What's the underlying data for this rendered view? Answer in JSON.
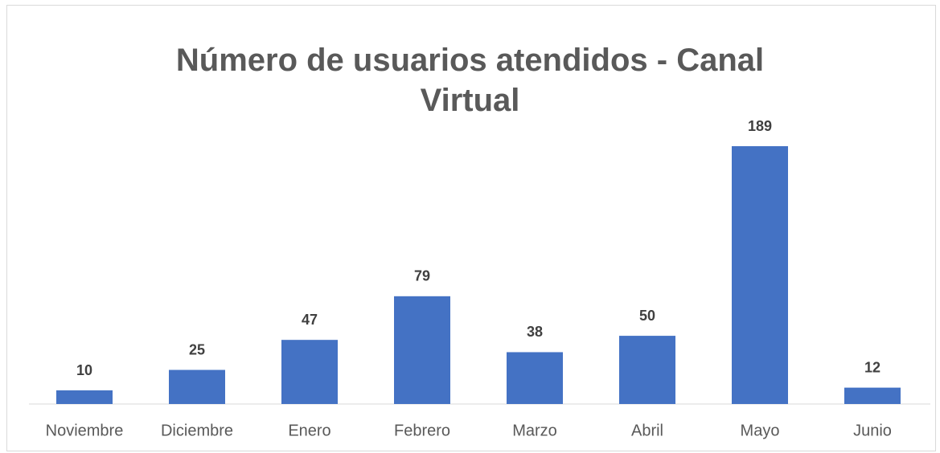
{
  "chart_data": {
    "type": "bar",
    "title": "Número de usuarios atendidos - Canal Virtual",
    "categories": [
      "Noviembre",
      "Diciembre",
      "Enero",
      "Febrero",
      "Marzo",
      "Abril",
      "Mayo",
      "Junio"
    ],
    "values": [
      10,
      25,
      47,
      79,
      38,
      50,
      189,
      12
    ],
    "color": "#4472c4"
  }
}
